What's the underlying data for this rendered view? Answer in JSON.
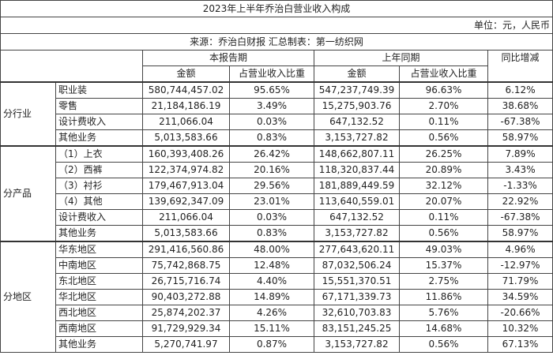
{
  "title": "2023年上半年乔治白营业收入构成",
  "unit": "单位：元，人民币",
  "source": "来源：乔治白财报   汇总制表：第一纺织网",
  "headers": {
    "current_period": "本报告期",
    "last_year_period": "上年同期",
    "yoy": "同比增减",
    "amount": "金额",
    "share": "占营业收入比重"
  },
  "groups": [
    {
      "label": "分行业",
      "rows": [
        {
          "name": "职业装",
          "cur_amount": "580,744,457.02",
          "cur_share": "95.65%",
          "prev_amount": "547,237,749.39",
          "prev_share": "96.63%",
          "yoy": "6.12%"
        },
        {
          "name": "零售",
          "cur_amount": "21,184,186.19",
          "cur_share": "3.49%",
          "prev_amount": "15,275,903.76",
          "prev_share": "2.70%",
          "yoy": "38.68%"
        },
        {
          "name": "设计费收入",
          "cur_amount": "211,066.04",
          "cur_share": "0.03%",
          "prev_amount": "647,132.52",
          "prev_share": "0.11%",
          "yoy": "-67.38%"
        },
        {
          "name": "其他业务",
          "cur_amount": "5,013,583.66",
          "cur_share": "0.83%",
          "prev_amount": "3,153,727.82",
          "prev_share": "0.56%",
          "yoy": "58.97%"
        }
      ]
    },
    {
      "label": "分产品",
      "rows": [
        {
          "name": "（1）上衣",
          "cur_amount": "160,393,408.26",
          "cur_share": "26.42%",
          "prev_amount": "148,662,807.11",
          "prev_share": "26.25%",
          "yoy": "7.89%"
        },
        {
          "name": "（2）西裤",
          "cur_amount": "122,374,974.82",
          "cur_share": "20.16%",
          "prev_amount": "118,320,837.44",
          "prev_share": "20.89%",
          "yoy": "3.43%"
        },
        {
          "name": "（3）衬衫",
          "cur_amount": "179,467,913.04",
          "cur_share": "29.56%",
          "prev_amount": "181,889,449.59",
          "prev_share": "32.12%",
          "yoy": "-1.33%"
        },
        {
          "name": "（4）其他",
          "cur_amount": "139,692,347.09",
          "cur_share": "23.01%",
          "prev_amount": "113,640,559.01",
          "prev_share": "20.07%",
          "yoy": "22.92%"
        },
        {
          "name": "设计费收入",
          "cur_amount": "211,066.04",
          "cur_share": "0.03%",
          "prev_amount": "647,132.52",
          "prev_share": "0.11%",
          "yoy": "-67.38%"
        },
        {
          "name": "其他业务",
          "cur_amount": "5,013,583.66",
          "cur_share": "0.83%",
          "prev_amount": "3,153,727.82",
          "prev_share": "0.56%",
          "yoy": "58.97%"
        }
      ]
    },
    {
      "label": "分地区",
      "rows": [
        {
          "name": "华东地区",
          "cur_amount": "291,416,560.86",
          "cur_share": "48.00%",
          "prev_amount": "277,643,620.11",
          "prev_share": "49.03%",
          "yoy": "4.96%"
        },
        {
          "name": "中南地区",
          "cur_amount": "75,742,868.75",
          "cur_share": "12.48%",
          "prev_amount": "87,032,506.24",
          "prev_share": "15.37%",
          "yoy": "-12.97%"
        },
        {
          "name": "东北地区",
          "cur_amount": "26,715,716.74",
          "cur_share": "4.40%",
          "prev_amount": "15,551,370.51",
          "prev_share": "2.75%",
          "yoy": "71.79%"
        },
        {
          "name": "华北地区",
          "cur_amount": "90,403,272.88",
          "cur_share": "14.89%",
          "prev_amount": "67,171,339.73",
          "prev_share": "11.86%",
          "yoy": "34.59%"
        },
        {
          "name": "西北地区",
          "cur_amount": "25,874,202.37",
          "cur_share": "4.26%",
          "prev_amount": "32,610,703.83",
          "prev_share": "5.76%",
          "yoy": "-20.66%"
        },
        {
          "name": "西南地区",
          "cur_amount": "91,729,929.34",
          "cur_share": "15.11%",
          "prev_amount": "83,151,245.25",
          "prev_share": "14.68%",
          "yoy": "10.32%"
        },
        {
          "name": "其他业务",
          "cur_amount": "5,270,741.97",
          "cur_share": "0.87%",
          "prev_amount": "3,153,727.82",
          "prev_share": "0.56%",
          "yoy": "67.13%"
        }
      ]
    }
  ]
}
